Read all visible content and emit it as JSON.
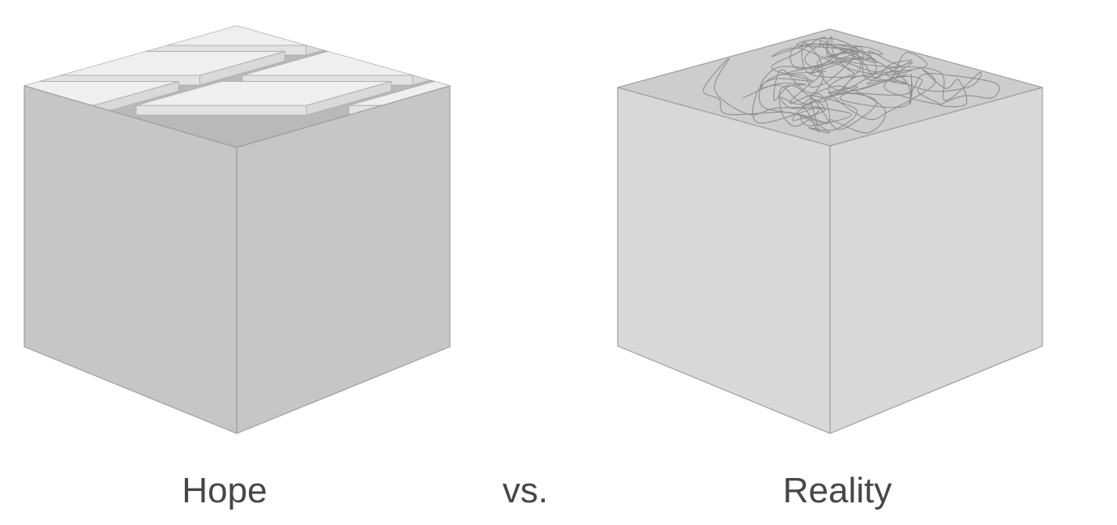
{
  "captions": {
    "hope": "Hope",
    "vs": "vs.",
    "reality": "Reality"
  },
  "colors": {
    "hope_box_side": "#c6c6c6",
    "hope_box_inner": "#b9b9b9",
    "hope_tile_top": "#efefef",
    "hope_tile_edge": "#b0b0b0",
    "reality_box_side": "#d8d8d8",
    "reality_box_inner": "#cdcdcd",
    "tangle_line": "#8e8e8e",
    "outline": "#9e9e9e",
    "text": "#474747"
  },
  "hope_tiles": {
    "rows": 3,
    "cols": 3
  },
  "reality_tangle": {
    "loops": 170
  }
}
